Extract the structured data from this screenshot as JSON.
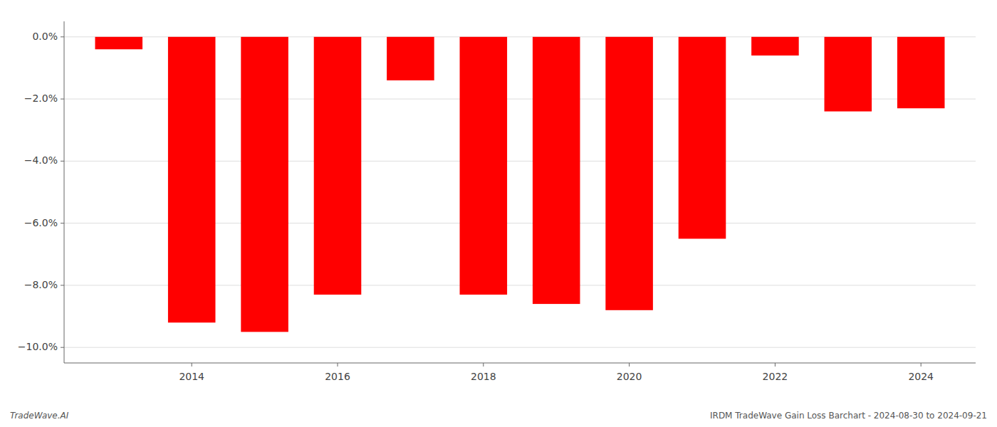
{
  "chart_data": {
    "type": "bar",
    "x": [
      2013,
      2014,
      2015,
      2016,
      2017,
      2018,
      2019,
      2020,
      2021,
      2022,
      2023,
      2024
    ],
    "values": [
      -0.004,
      -0.092,
      -0.095,
      -0.083,
      -0.014,
      -0.083,
      -0.086,
      -0.088,
      -0.065,
      -0.006,
      -0.024,
      -0.023
    ],
    "color": "#ff0000",
    "xlim": [
      2012.25,
      2024.75
    ],
    "xticks": [
      2014,
      2016,
      2018,
      2020,
      2022,
      2024
    ],
    "ylim": [
      -0.105,
      0.005
    ],
    "yticks": [
      {
        "value": 0.0,
        "label": "0.0%"
      },
      {
        "value": -0.02,
        "label": "−2.0%"
      },
      {
        "value": -0.04,
        "label": "−4.0%"
      },
      {
        "value": -0.06,
        "label": "−6.0%"
      },
      {
        "value": -0.08,
        "label": "−8.0%"
      },
      {
        "value": -0.1,
        "label": "−10.0%"
      }
    ],
    "grid": true,
    "annotations": [
      "TradeWave.AI",
      "IRDM TradeWave Gain Loss Barchart - 2024-08-30 to 2024-09-21"
    ]
  }
}
